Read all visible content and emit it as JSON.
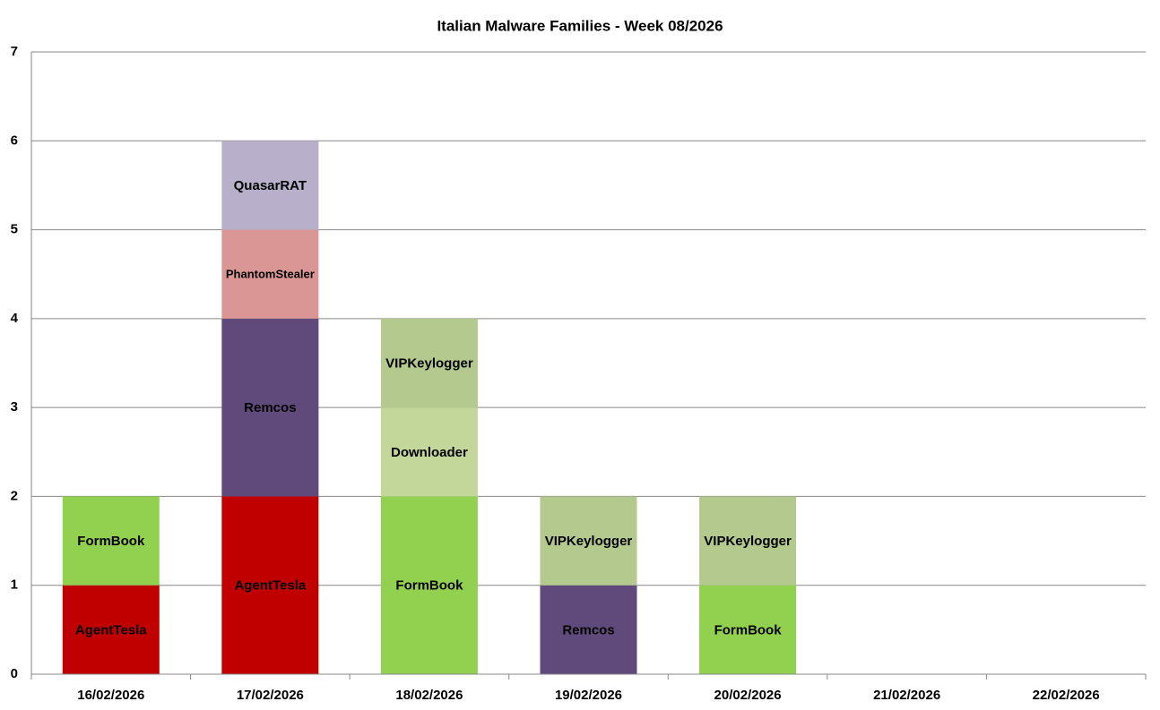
{
  "chart_data": {
    "type": "stacked_bar",
    "title": "Italian Malware Families - Week 08/2026",
    "categories": [
      "16/02/2026",
      "17/02/2026",
      "18/02/2026",
      "19/02/2026",
      "20/02/2026",
      "21/02/2026",
      "22/02/2026"
    ],
    "series": [
      {
        "name": "AgentTesla",
        "color": "#c00000",
        "values": [
          1,
          2,
          null,
          null,
          null,
          null,
          null
        ]
      },
      {
        "name": "FormBook",
        "color": "#92d050",
        "values": [
          1,
          null,
          2,
          null,
          1,
          null,
          null
        ]
      },
      {
        "name": "Remcos",
        "color": "#604a7b",
        "values": [
          null,
          2,
          null,
          1,
          null,
          null,
          null
        ]
      },
      {
        "name": "Downloader",
        "color": "#c4d79b",
        "values": [
          null,
          null,
          1,
          null,
          null,
          null,
          null
        ]
      },
      {
        "name": "VIPKeylogger",
        "color": "#b3c98d",
        "values": [
          null,
          null,
          1,
          1,
          1,
          null,
          null
        ]
      },
      {
        "name": "PhantomStealer",
        "color": "#da9694",
        "values": [
          null,
          1,
          null,
          null,
          null,
          null,
          null
        ]
      },
      {
        "name": "QuasarRAT",
        "color": "#b8b0cb",
        "values": [
          null,
          1,
          null,
          null,
          null,
          null,
          null
        ]
      }
    ],
    "ylim": [
      0,
      7
    ],
    "yticks": [
      0,
      1,
      2,
      3,
      4,
      5,
      6,
      7
    ],
    "grid": true
  }
}
